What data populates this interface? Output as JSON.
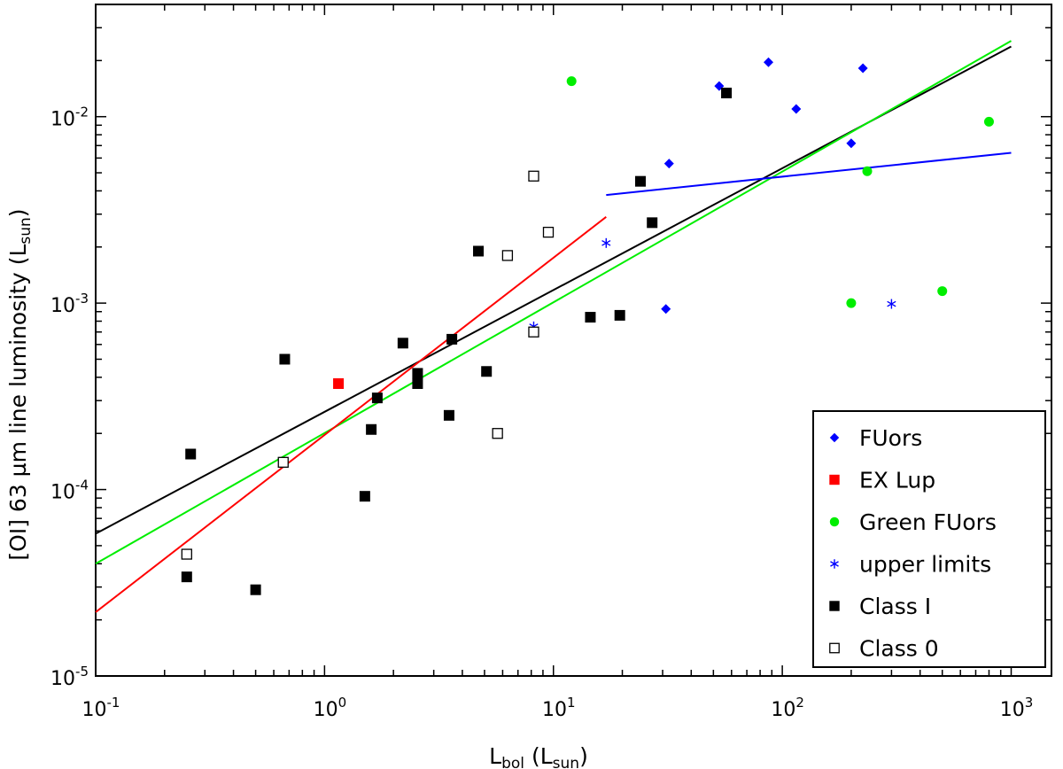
{
  "chart_data": {
    "type": "scatter",
    "scale": {
      "x": "log",
      "y": "log"
    },
    "xlim": [
      0.1,
      1500
    ],
    "ylim": [
      1e-05,
      0.04
    ],
    "xlabel": {
      "main": "L",
      "sub": "bol",
      "unit_main": "L",
      "unit_sub": "sun"
    },
    "ylabel": {
      "main": "[OI] 63 µm line luminosity",
      "unit_main": "L",
      "unit_sub": "sun"
    },
    "x_ticks": [
      {
        "value": 0.1,
        "base": "10",
        "exp": "-1"
      },
      {
        "value": 1,
        "base": "10",
        "exp": "0"
      },
      {
        "value": 10,
        "base": "10",
        "exp": "1"
      },
      {
        "value": 100,
        "base": "10",
        "exp": "2"
      },
      {
        "value": 1000,
        "base": "10",
        "exp": "3"
      }
    ],
    "y_ticks": [
      {
        "value": 1e-05,
        "base": "10",
        "exp": "-5"
      },
      {
        "value": 0.0001,
        "base": "10",
        "exp": "-4"
      },
      {
        "value": 0.001,
        "base": "10",
        "exp": "-3"
      },
      {
        "value": 0.01,
        "base": "10",
        "exp": "-2"
      }
    ],
    "series": [
      {
        "name": "FUors",
        "marker": "diamond",
        "color": "#0000ff",
        "points": [
          [
            53,
            0.0146
          ],
          [
            87,
            0.0196
          ],
          [
            225,
            0.0182
          ],
          [
            115,
            0.011
          ],
          [
            200,
            0.0072
          ],
          [
            32,
            0.0056
          ],
          [
            31,
            0.00093
          ]
        ]
      },
      {
        "name": "EX Lup",
        "marker": "square",
        "color": "#ff0000",
        "points": [
          [
            1.15,
            0.00037
          ]
        ]
      },
      {
        "name": "Green FUors",
        "marker": "circle",
        "color": "#00ee00",
        "points": [
          [
            12,
            0.0155
          ],
          [
            800,
            0.0094
          ],
          [
            235,
            0.0051
          ],
          [
            200,
            0.001
          ],
          [
            500,
            0.00116
          ]
        ]
      },
      {
        "name": "upper limits",
        "marker": "asterisk",
        "color": "#0000ff",
        "points": [
          [
            17,
            0.0021
          ],
          [
            8.2,
            0.00075
          ],
          [
            300,
            0.00099
          ]
        ]
      },
      {
        "name": "Class I",
        "marker": "square",
        "color": "#000000",
        "points": [
          [
            57,
            0.0134
          ],
          [
            24,
            0.0045
          ],
          [
            27,
            0.0027
          ],
          [
            4.7,
            0.0019
          ],
          [
            14.5,
            0.00084
          ],
          [
            19.5,
            0.00086
          ],
          [
            3.6,
            0.00064
          ],
          [
            2.2,
            0.00061
          ],
          [
            0.67,
            0.0005
          ],
          [
            5.1,
            0.00043
          ],
          [
            2.55,
            0.00042
          ],
          [
            2.55,
            0.00037
          ],
          [
            1.7,
            0.00031
          ],
          [
            3.5,
            0.00025
          ],
          [
            1.6,
            0.00021
          ],
          [
            0.26,
            0.000155
          ],
          [
            1.5,
            9.2e-05
          ],
          [
            0.25,
            3.4e-05
          ],
          [
            0.5,
            2.9e-05
          ]
        ]
      },
      {
        "name": "Class 0",
        "marker": "open-square",
        "color": "#000000",
        "points": [
          [
            8.2,
            0.0048
          ],
          [
            9.5,
            0.0024
          ],
          [
            6.3,
            0.0018
          ],
          [
            8.2,
            0.0007
          ],
          [
            5.7,
            0.0002
          ],
          [
            0.66,
            0.00014
          ],
          [
            0.25,
            4.5e-05
          ]
        ]
      }
    ],
    "fits": [
      {
        "name": "fit all",
        "color": "#000000",
        "points": [
          [
            0.1,
            5.8e-05
          ],
          [
            1000,
            0.0238
          ]
        ]
      },
      {
        "name": "fit green",
        "color": "#00ee00",
        "points": [
          [
            0.1,
            4e-05
          ],
          [
            1000,
            0.0255
          ]
        ]
      },
      {
        "name": "fit red",
        "color": "#ff0000",
        "points": [
          [
            0.1,
            2.2e-05
          ],
          [
            17,
            0.0029
          ]
        ]
      },
      {
        "name": "fit blue",
        "color": "#0000ff",
        "points": [
          [
            17,
            0.0038
          ],
          [
            1000,
            0.0064
          ]
        ]
      }
    ],
    "legend": {
      "position": "bottom-right"
    }
  }
}
